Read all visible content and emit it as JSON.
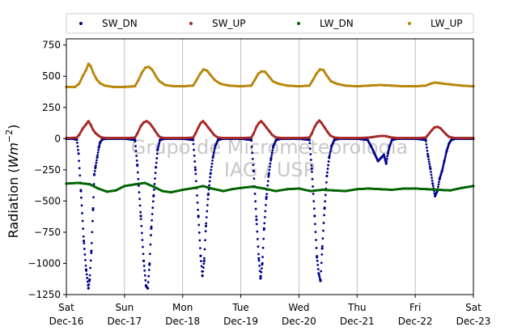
{
  "chart_data": {
    "type": "scatter",
    "ylabel_main": "Radiation (",
    "ylabel_unit": "Wm",
    "ylabel_exp": "−2",
    "ylabel_close": ")",
    "ylim": [
      -1250,
      800
    ],
    "yticks": [
      -1250,
      -1000,
      -750,
      -500,
      -250,
      0,
      250,
      500,
      750
    ],
    "ytick_labels": [
      "−1250",
      "−1000",
      "−750",
      "−500",
      "−250",
      "0",
      "250",
      "500",
      "750"
    ],
    "xlim": [
      "2023-12-16",
      "2023-12-23"
    ],
    "xticks": [
      {
        "date": "2023-12-16",
        "day": "Sat",
        "label": "Dec-16"
      },
      {
        "date": "2023-12-17",
        "day": "Sun",
        "label": "Dec-17"
      },
      {
        "date": "2023-12-18",
        "day": "Mon",
        "label": "Dec-18"
      },
      {
        "date": "2023-12-19",
        "day": "Tue",
        "label": "Dec-19"
      },
      {
        "date": "2023-12-20",
        "day": "Wed",
        "label": "Dec-20"
      },
      {
        "date": "2023-12-21",
        "day": "Thu",
        "label": "Dec-21"
      },
      {
        "date": "2023-12-22",
        "day": "Fri",
        "label": "Dec-22"
      },
      {
        "date": "2023-12-23",
        "day": "Sat",
        "label": "Dec-23"
      }
    ],
    "grid": "vertical",
    "legend_placement": "top",
    "watermark_line1": "Grupo de Micrometeorologia",
    "watermark_line2": "IAG / USP",
    "series": [
      {
        "name": "SW_DN",
        "color": "#00008b",
        "points": [
          [
            0.0,
            0
          ],
          [
            0.1,
            0
          ],
          [
            0.18,
            -8
          ],
          [
            0.21,
            -120
          ],
          [
            0.25,
            -420
          ],
          [
            0.3,
            -820
          ],
          [
            0.34,
            -1050
          ],
          [
            0.38,
            -1200
          ],
          [
            0.4,
            -1130
          ],
          [
            0.43,
            -900
          ],
          [
            0.46,
            -560
          ],
          [
            0.48,
            -290
          ],
          [
            0.5,
            -230
          ],
          [
            0.53,
            -150
          ],
          [
            0.56,
            -70
          ],
          [
            0.58,
            -30
          ],
          [
            0.62,
            -5
          ],
          [
            0.7,
            0
          ],
          [
            1.0,
            0
          ],
          [
            1.18,
            -10
          ],
          [
            1.22,
            -210
          ],
          [
            1.28,
            -620
          ],
          [
            1.33,
            -980
          ],
          [
            1.37,
            -1180
          ],
          [
            1.4,
            -1200
          ],
          [
            1.43,
            -1010
          ],
          [
            1.46,
            -720
          ],
          [
            1.5,
            -460
          ],
          [
            1.54,
            -230
          ],
          [
            1.57,
            -90
          ],
          [
            1.61,
            -10
          ],
          [
            1.7,
            0
          ],
          [
            2.0,
            0
          ],
          [
            2.18,
            -10
          ],
          [
            2.22,
            -250
          ],
          [
            2.27,
            -620
          ],
          [
            2.31,
            -940
          ],
          [
            2.34,
            -1100
          ],
          [
            2.37,
            -980
          ],
          [
            2.4,
            -700
          ],
          [
            2.44,
            -450
          ],
          [
            2.48,
            -280
          ],
          [
            2.52,
            -150
          ],
          [
            2.56,
            -60
          ],
          [
            2.61,
            -10
          ],
          [
            2.7,
            0
          ],
          [
            3.0,
            0
          ],
          [
            3.18,
            -10
          ],
          [
            3.22,
            -260
          ],
          [
            3.27,
            -650
          ],
          [
            3.31,
            -960
          ],
          [
            3.34,
            -1120
          ],
          [
            3.37,
            -1000
          ],
          [
            3.4,
            -720
          ],
          [
            3.44,
            -470
          ],
          [
            3.48,
            -290
          ],
          [
            3.52,
            -160
          ],
          [
            3.56,
            -60
          ],
          [
            3.61,
            -10
          ],
          [
            3.7,
            0
          ],
          [
            4.0,
            0
          ],
          [
            4.18,
            -10
          ],
          [
            4.22,
            -240
          ],
          [
            4.27,
            -620
          ],
          [
            4.31,
            -950
          ],
          [
            4.34,
            -1080
          ],
          [
            4.37,
            -1140
          ],
          [
            4.4,
            -880
          ],
          [
            4.44,
            -560
          ],
          [
            4.48,
            -300
          ],
          [
            4.52,
            -150
          ],
          [
            4.56,
            -60
          ],
          [
            4.61,
            -10
          ],
          [
            4.7,
            0
          ],
          [
            5.0,
            0
          ],
          [
            5.18,
            -10
          ],
          [
            5.24,
            -60
          ],
          [
            5.3,
            -120
          ],
          [
            5.36,
            -180
          ],
          [
            5.42,
            -150
          ],
          [
            5.46,
            -130
          ],
          [
            5.5,
            -200
          ],
          [
            5.53,
            -120
          ],
          [
            5.56,
            -60
          ],
          [
            5.6,
            -10
          ],
          [
            5.7,
            0
          ],
          [
            6.0,
            0
          ],
          [
            6.18,
            -10
          ],
          [
            6.22,
            -140
          ],
          [
            6.26,
            -240
          ],
          [
            6.3,
            -360
          ],
          [
            6.34,
            -460
          ],
          [
            6.38,
            -420
          ],
          [
            6.42,
            -320
          ],
          [
            6.46,
            -260
          ],
          [
            6.5,
            -180
          ],
          [
            6.54,
            -100
          ],
          [
            6.58,
            -40
          ],
          [
            6.62,
            -10
          ],
          [
            6.7,
            0
          ],
          [
            7.0,
            0
          ]
        ]
      },
      {
        "name": "SW_UP",
        "color": "#a52a2a",
        "points": [
          [
            0.0,
            5
          ],
          [
            0.18,
            8
          ],
          [
            0.22,
            30
          ],
          [
            0.28,
            80
          ],
          [
            0.34,
            115
          ],
          [
            0.38,
            140
          ],
          [
            0.42,
            110
          ],
          [
            0.46,
            70
          ],
          [
            0.5,
            45
          ],
          [
            0.55,
            25
          ],
          [
            0.6,
            10
          ],
          [
            0.7,
            5
          ],
          [
            1.0,
            5
          ],
          [
            1.18,
            8
          ],
          [
            1.22,
            40
          ],
          [
            1.28,
            100
          ],
          [
            1.33,
            130
          ],
          [
            1.38,
            140
          ],
          [
            1.43,
            125
          ],
          [
            1.48,
            95
          ],
          [
            1.53,
            60
          ],
          [
            1.58,
            25
          ],
          [
            1.62,
            10
          ],
          [
            1.7,
            5
          ],
          [
            2.0,
            5
          ],
          [
            2.18,
            8
          ],
          [
            2.22,
            40
          ],
          [
            2.27,
            90
          ],
          [
            2.31,
            125
          ],
          [
            2.35,
            140
          ],
          [
            2.39,
            120
          ],
          [
            2.44,
            90
          ],
          [
            2.49,
            60
          ],
          [
            2.54,
            30
          ],
          [
            2.6,
            10
          ],
          [
            2.7,
            5
          ],
          [
            3.0,
            5
          ],
          [
            3.18,
            8
          ],
          [
            3.22,
            40
          ],
          [
            3.27,
            95
          ],
          [
            3.31,
            125
          ],
          [
            3.35,
            140
          ],
          [
            3.39,
            120
          ],
          [
            3.44,
            90
          ],
          [
            3.49,
            60
          ],
          [
            3.54,
            30
          ],
          [
            3.6,
            10
          ],
          [
            3.7,
            5
          ],
          [
            4.0,
            5
          ],
          [
            4.18,
            8
          ],
          [
            4.22,
            40
          ],
          [
            4.27,
            95
          ],
          [
            4.31,
            125
          ],
          [
            4.35,
            145
          ],
          [
            4.39,
            125
          ],
          [
            4.44,
            90
          ],
          [
            4.49,
            55
          ],
          [
            4.54,
            25
          ],
          [
            4.6,
            10
          ],
          [
            4.7,
            5
          ],
          [
            5.0,
            5
          ],
          [
            5.18,
            8
          ],
          [
            5.26,
            12
          ],
          [
            5.34,
            18
          ],
          [
            5.42,
            22
          ],
          [
            5.5,
            20
          ],
          [
            5.56,
            12
          ],
          [
            5.62,
            8
          ],
          [
            5.7,
            5
          ],
          [
            6.0,
            5
          ],
          [
            6.18,
            8
          ],
          [
            6.22,
            30
          ],
          [
            6.28,
            65
          ],
          [
            6.33,
            90
          ],
          [
            6.38,
            95
          ],
          [
            6.43,
            85
          ],
          [
            6.48,
            60
          ],
          [
            6.53,
            35
          ],
          [
            6.58,
            15
          ],
          [
            6.64,
            8
          ],
          [
            6.7,
            5
          ],
          [
            7.0,
            5
          ]
        ]
      },
      {
        "name": "LW_DN",
        "color": "#006400",
        "points": [
          [
            0.0,
            -360
          ],
          [
            0.2,
            -355
          ],
          [
            0.4,
            -365
          ],
          [
            0.55,
            -400
          ],
          [
            0.7,
            -425
          ],
          [
            0.85,
            -415
          ],
          [
            1.0,
            -380
          ],
          [
            1.2,
            -365
          ],
          [
            1.35,
            -355
          ],
          [
            1.5,
            -385
          ],
          [
            1.65,
            -420
          ],
          [
            1.8,
            -430
          ],
          [
            2.0,
            -410
          ],
          [
            2.2,
            -395
          ],
          [
            2.35,
            -380
          ],
          [
            2.5,
            -400
          ],
          [
            2.7,
            -420
          ],
          [
            2.85,
            -405
          ],
          [
            3.0,
            -395
          ],
          [
            3.2,
            -385
          ],
          [
            3.4,
            -400
          ],
          [
            3.6,
            -420
          ],
          [
            3.8,
            -405
          ],
          [
            4.0,
            -400
          ],
          [
            4.2,
            -420
          ],
          [
            4.4,
            -410
          ],
          [
            4.6,
            -415
          ],
          [
            4.8,
            -420
          ],
          [
            5.0,
            -405
          ],
          [
            5.2,
            -400
          ],
          [
            5.4,
            -405
          ],
          [
            5.6,
            -410
          ],
          [
            5.8,
            -400
          ],
          [
            6.0,
            -400
          ],
          [
            6.2,
            -405
          ],
          [
            6.4,
            -410
          ],
          [
            6.6,
            -415
          ],
          [
            6.8,
            -395
          ],
          [
            7.0,
            -380
          ]
        ]
      },
      {
        "name": "LW_UP",
        "color": "#b8860b",
        "points": [
          [
            0.0,
            415
          ],
          [
            0.15,
            415
          ],
          [
            0.22,
            440
          ],
          [
            0.28,
            500
          ],
          [
            0.34,
            550
          ],
          [
            0.38,
            600
          ],
          [
            0.42,
            580
          ],
          [
            0.46,
            530
          ],
          [
            0.52,
            475
          ],
          [
            0.58,
            445
          ],
          [
            0.66,
            425
          ],
          [
            0.8,
            415
          ],
          [
            1.0,
            415
          ],
          [
            1.18,
            420
          ],
          [
            1.24,
            470
          ],
          [
            1.3,
            530
          ],
          [
            1.36,
            570
          ],
          [
            1.42,
            575
          ],
          [
            1.48,
            550
          ],
          [
            1.54,
            500
          ],
          [
            1.6,
            460
          ],
          [
            1.7,
            430
          ],
          [
            1.85,
            420
          ],
          [
            2.0,
            420
          ],
          [
            2.18,
            425
          ],
          [
            2.24,
            470
          ],
          [
            2.3,
            520
          ],
          [
            2.36,
            555
          ],
          [
            2.42,
            545
          ],
          [
            2.48,
            510
          ],
          [
            2.55,
            470
          ],
          [
            2.65,
            440
          ],
          [
            2.8,
            425
          ],
          [
            3.0,
            420
          ],
          [
            3.18,
            425
          ],
          [
            3.24,
            470
          ],
          [
            3.3,
            520
          ],
          [
            3.36,
            540
          ],
          [
            3.42,
            535
          ],
          [
            3.48,
            500
          ],
          [
            3.55,
            460
          ],
          [
            3.65,
            440
          ],
          [
            3.8,
            425
          ],
          [
            4.0,
            420
          ],
          [
            4.18,
            425
          ],
          [
            4.24,
            470
          ],
          [
            4.3,
            520
          ],
          [
            4.36,
            555
          ],
          [
            4.42,
            550
          ],
          [
            4.48,
            505
          ],
          [
            4.55,
            460
          ],
          [
            4.65,
            440
          ],
          [
            4.8,
            425
          ],
          [
            5.0,
            420
          ],
          [
            5.2,
            425
          ],
          [
            5.4,
            430
          ],
          [
            5.6,
            425
          ],
          [
            5.8,
            420
          ],
          [
            6.0,
            420
          ],
          [
            6.18,
            425
          ],
          [
            6.26,
            440
          ],
          [
            6.34,
            450
          ],
          [
            6.42,
            445
          ],
          [
            6.5,
            440
          ],
          [
            6.6,
            435
          ],
          [
            6.8,
            425
          ],
          [
            7.0,
            420
          ]
        ]
      }
    ]
  }
}
